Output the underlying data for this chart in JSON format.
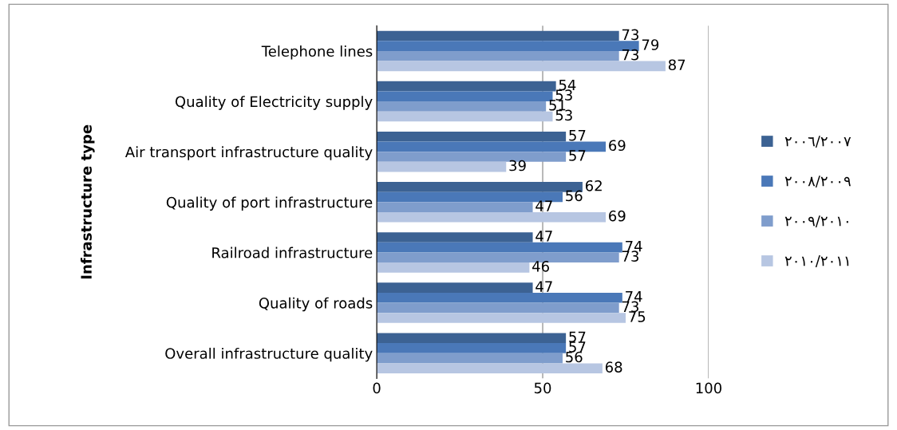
{
  "chart_data": {
    "type": "bar",
    "orientation": "horizontal",
    "ylabel": "Infrastructure type",
    "categories": [
      "Telephone lines",
      "Quality of Electricity supply",
      "Air transport infrastructure quality",
      "Quality of port infrastructure",
      "Railroad infrastructure",
      "Quality of roads",
      "Overall infrastructure quality"
    ],
    "series": [
      {
        "name": "٢٠٠٦/٢٠٠٧",
        "color": "#3c6293",
        "values": [
          73,
          54,
          57,
          62,
          47,
          47,
          57
        ]
      },
      {
        "name": "٢٠٠٨/٢٠٠٩",
        "color": "#4a78b8",
        "values": [
          79,
          53,
          69,
          56,
          74,
          74,
          57
        ]
      },
      {
        "name": "٢٠٠٩/٢٠١٠",
        "color": "#7f9dcc",
        "values": [
          73,
          51,
          57,
          47,
          73,
          73,
          56
        ]
      },
      {
        "name": "٢٠١٠/٢٠١١",
        "color": "#b7c6e2",
        "values": [
          87,
          53,
          39,
          69,
          46,
          75,
          68
        ]
      }
    ],
    "xlim": [
      0,
      100
    ],
    "xticks": [
      0,
      50,
      100
    ],
    "grid": "x",
    "legend": "right",
    "data_labels": true
  }
}
